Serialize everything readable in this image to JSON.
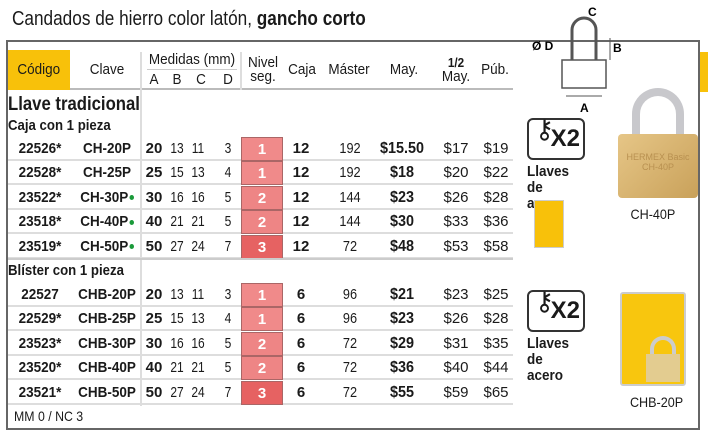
{
  "title": {
    "normal": "Candados de hierro color latón, ",
    "bold": "gancho corto"
  },
  "header": {
    "codigo": "Código",
    "clave": "Clave",
    "medidas": "Medidas (mm)",
    "a": "A",
    "b": "B",
    "c": "C",
    "d": "D",
    "nivel": "Nivel seg.",
    "caja": "Caja",
    "master": "Máster",
    "may": "May.",
    "half": "1/2",
    "half_may": "May.",
    "pub": "Púb."
  },
  "section": "Llave tradicional",
  "groups": [
    {
      "label": "Caja con 1 pieza",
      "rows": [
        {
          "codigo": "22526*",
          "clave": "CH-20P",
          "dot": false,
          "a": "20",
          "b": "13",
          "c": "11",
          "d": "3",
          "nivel": "1",
          "caja": "12",
          "master": "192",
          "may": "$15.50",
          "half": "$17",
          "pub": "$19"
        },
        {
          "codigo": "22528*",
          "clave": "CH-25P",
          "dot": false,
          "a": "25",
          "b": "15",
          "c": "13",
          "d": "4",
          "nivel": "1",
          "caja": "12",
          "master": "192",
          "may": "$18",
          "half": "$20",
          "pub": "$22"
        },
        {
          "codigo": "23522*",
          "clave": "CH-30P",
          "dot": true,
          "a": "30",
          "b": "16",
          "c": "16",
          "d": "5",
          "nivel": "2",
          "caja": "12",
          "master": "144",
          "may": "$23",
          "half": "$26",
          "pub": "$28"
        },
        {
          "codigo": "23518*",
          "clave": "CH-40P",
          "dot": true,
          "a": "40",
          "b": "21",
          "c": "21",
          "d": "5",
          "nivel": "2",
          "caja": "12",
          "master": "144",
          "may": "$30",
          "half": "$33",
          "pub": "$36"
        },
        {
          "codigo": "23519*",
          "clave": "CH-50P",
          "dot": true,
          "a": "50",
          "b": "27",
          "c": "24",
          "d": "7",
          "nivel": "3",
          "caja": "12",
          "master": "72",
          "may": "$48",
          "half": "$53",
          "pub": "$58"
        }
      ]
    },
    {
      "label": "Blíster con 1 pieza",
      "rows": [
        {
          "codigo": "22527",
          "clave": "CHB-20P",
          "dot": false,
          "a": "20",
          "b": "13",
          "c": "11",
          "d": "3",
          "nivel": "1",
          "caja": "6",
          "master": "96",
          "may": "$21",
          "half": "$23",
          "pub": "$25"
        },
        {
          "codigo": "22529*",
          "clave": "CHB-25P",
          "dot": false,
          "a": "25",
          "b": "15",
          "c": "13",
          "d": "4",
          "nivel": "1",
          "caja": "6",
          "master": "96",
          "may": "$23",
          "half": "$26",
          "pub": "$28"
        },
        {
          "codigo": "23523*",
          "clave": "CHB-30P",
          "dot": false,
          "a": "30",
          "b": "16",
          "c": "16",
          "d": "5",
          "nivel": "2",
          "caja": "6",
          "master": "72",
          "may": "$29",
          "half": "$31",
          "pub": "$35"
        },
        {
          "codigo": "23520*",
          "clave": "CHB-40P",
          "dot": false,
          "a": "40",
          "b": "21",
          "c": "21",
          "d": "5",
          "nivel": "2",
          "caja": "6",
          "master": "72",
          "may": "$36",
          "half": "$40",
          "pub": "$44"
        },
        {
          "codigo": "23521*",
          "clave": "CHB-50P",
          "dot": false,
          "a": "50",
          "b": "27",
          "c": "24",
          "d": "7",
          "nivel": "3",
          "caja": "6",
          "master": "72",
          "may": "$55",
          "half": "$59",
          "pub": "$65"
        }
      ]
    }
  ],
  "level_colors": {
    "1": "#f08a8a",
    "2": "#ee8585",
    "3": "#e66262"
  },
  "footer": "MM 0 / NC 3",
  "side": {
    "diagram": {
      "c": "C",
      "d": "Ø D",
      "b": "B",
      "a": "A"
    },
    "keys_x2": "X2",
    "keys_label_1": "Llaves",
    "keys_label_2": "de acero",
    "product1_caption": "CH-40P",
    "product1_engraving": "HERMEX Basic CH-40P",
    "product2_caption": "CHB-20P"
  },
  "colors": {
    "accent_yellow": "#f8c10a",
    "dot_green": "#1a9a3a"
  }
}
